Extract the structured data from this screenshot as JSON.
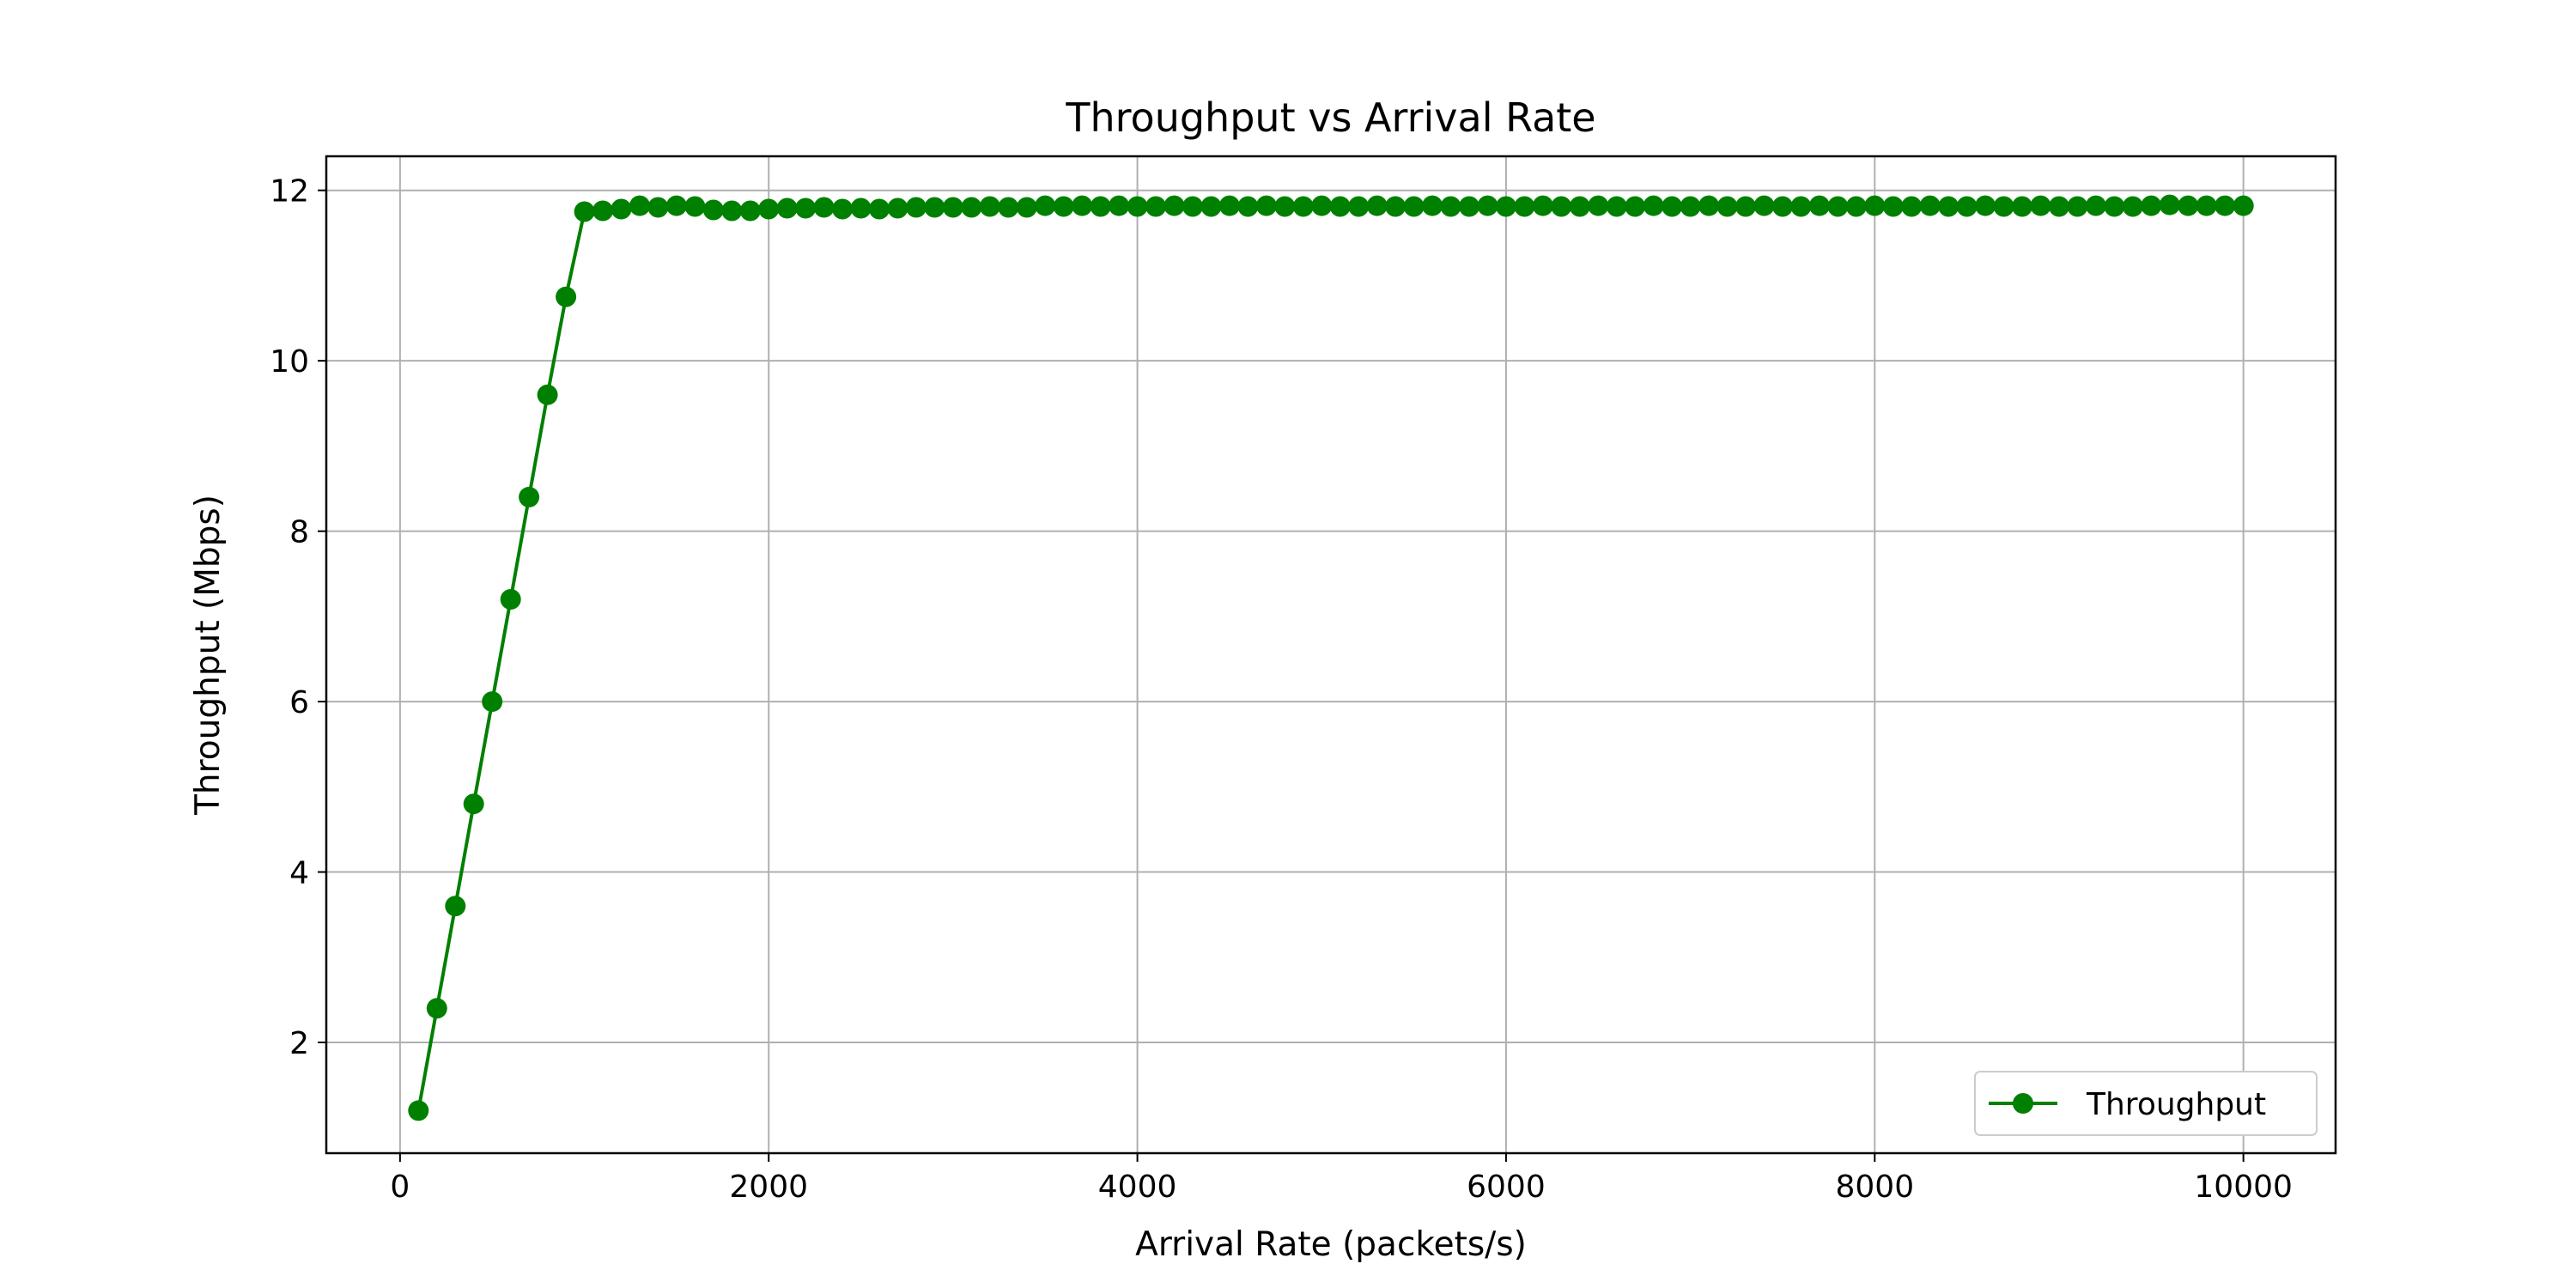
{
  "chart_data": {
    "type": "line",
    "title": "Throughput vs Arrival Rate",
    "xlabel": "Arrival Rate (packets/s)",
    "ylabel": "Throughput (Mbps)",
    "xlim": [
      -400,
      10500
    ],
    "ylim": [
      0.7,
      12.4
    ],
    "xticks": [
      0,
      2000,
      4000,
      6000,
      8000,
      10000
    ],
    "yticks": [
      2,
      4,
      6,
      8,
      10,
      12
    ],
    "grid": true,
    "legend_position": "bottom-right",
    "series": [
      {
        "name": "Throughput",
        "color": "#008000",
        "marker": "circle",
        "x": [
          100,
          200,
          300,
          400,
          500,
          600,
          700,
          800,
          900,
          1000,
          1100,
          1200,
          1300,
          1400,
          1500,
          1600,
          1700,
          1800,
          1900,
          2000,
          2100,
          2200,
          2300,
          2400,
          2500,
          2600,
          2700,
          2800,
          2900,
          3000,
          3100,
          3200,
          3300,
          3400,
          3500,
          3600,
          3700,
          3800,
          3900,
          4000,
          4100,
          4200,
          4300,
          4400,
          4500,
          4600,
          4700,
          4800,
          4900,
          5000,
          5100,
          5200,
          5300,
          5400,
          5500,
          5600,
          5700,
          5800,
          5900,
          6000,
          6100,
          6200,
          6300,
          6400,
          6500,
          6600,
          6700,
          6800,
          6900,
          7000,
          7100,
          7200,
          7300,
          7400,
          7500,
          7600,
          7700,
          7800,
          7900,
          8000,
          8100,
          8200,
          8300,
          8400,
          8500,
          8600,
          8700,
          8800,
          8900,
          9000,
          9100,
          9200,
          9300,
          9400,
          9500,
          9600,
          9700,
          9800,
          9900,
          10000
        ],
        "y": [
          1.2,
          2.4,
          3.6,
          4.8,
          6.0,
          7.2,
          8.4,
          9.6,
          10.75,
          11.75,
          11.76,
          11.78,
          11.82,
          11.8,
          11.82,
          11.81,
          11.77,
          11.76,
          11.76,
          11.78,
          11.79,
          11.79,
          11.8,
          11.78,
          11.79,
          11.78,
          11.79,
          11.8,
          11.8,
          11.8,
          11.8,
          11.81,
          11.8,
          11.8,
          11.82,
          11.81,
          11.82,
          11.81,
          11.82,
          11.81,
          11.81,
          11.82,
          11.81,
          11.81,
          11.82,
          11.81,
          11.82,
          11.81,
          11.81,
          11.82,
          11.81,
          11.81,
          11.82,
          11.81,
          11.81,
          11.82,
          11.81,
          11.81,
          11.82,
          11.81,
          11.81,
          11.82,
          11.81,
          11.81,
          11.82,
          11.81,
          11.81,
          11.82,
          11.81,
          11.81,
          11.82,
          11.81,
          11.81,
          11.82,
          11.81,
          11.81,
          11.82,
          11.81,
          11.81,
          11.82,
          11.81,
          11.81,
          11.82,
          11.81,
          11.81,
          11.82,
          11.81,
          11.81,
          11.82,
          11.81,
          11.81,
          11.82,
          11.81,
          11.81,
          11.82,
          11.83,
          11.82,
          11.82,
          11.82,
          11.82
        ]
      }
    ]
  }
}
